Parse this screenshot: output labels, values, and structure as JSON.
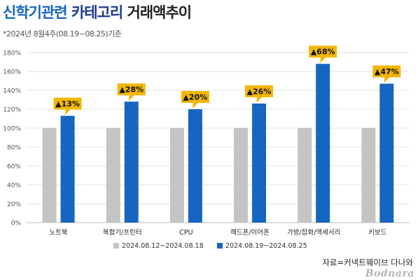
{
  "header": {
    "title_part1": "신학기관련",
    "title_part2": "카테고리",
    "title_part3": "거래액추이",
    "subtitle": "*2024년 8월4주(08.19~08.25)기준"
  },
  "chart_data": {
    "type": "bar",
    "categories": [
      "노트북",
      "복합기/프린터",
      "CPU",
      "헤드폰/이어폰",
      "가방/잡화/액세서리",
      "키보드"
    ],
    "series": [
      {
        "name": "2024.08.12~2024.08.18",
        "values": [
          100,
          100,
          100,
          100,
          100,
          100
        ],
        "color": "#c4c4c4"
      },
      {
        "name": "2024.08.19~2024.08.25",
        "values": [
          113,
          128,
          120,
          126,
          168,
          147
        ],
        "color": "#1665c1"
      }
    ],
    "annotations": [
      "▲13%",
      "▲28%",
      "▲20%",
      "▲26%",
      "▲68%",
      "▲47%"
    ],
    "annotation_color": "#f2b705",
    "yticks": [
      "0%",
      "20%",
      "40%",
      "60%",
      "80%",
      "100%",
      "120%",
      "140%",
      "160%",
      "180%"
    ],
    "ylim": [
      0,
      180
    ],
    "grid": true,
    "legend": "bottom"
  },
  "footer": {
    "source": "자료=커넥트웨이브 다나와",
    "logo": "Bodnara"
  }
}
